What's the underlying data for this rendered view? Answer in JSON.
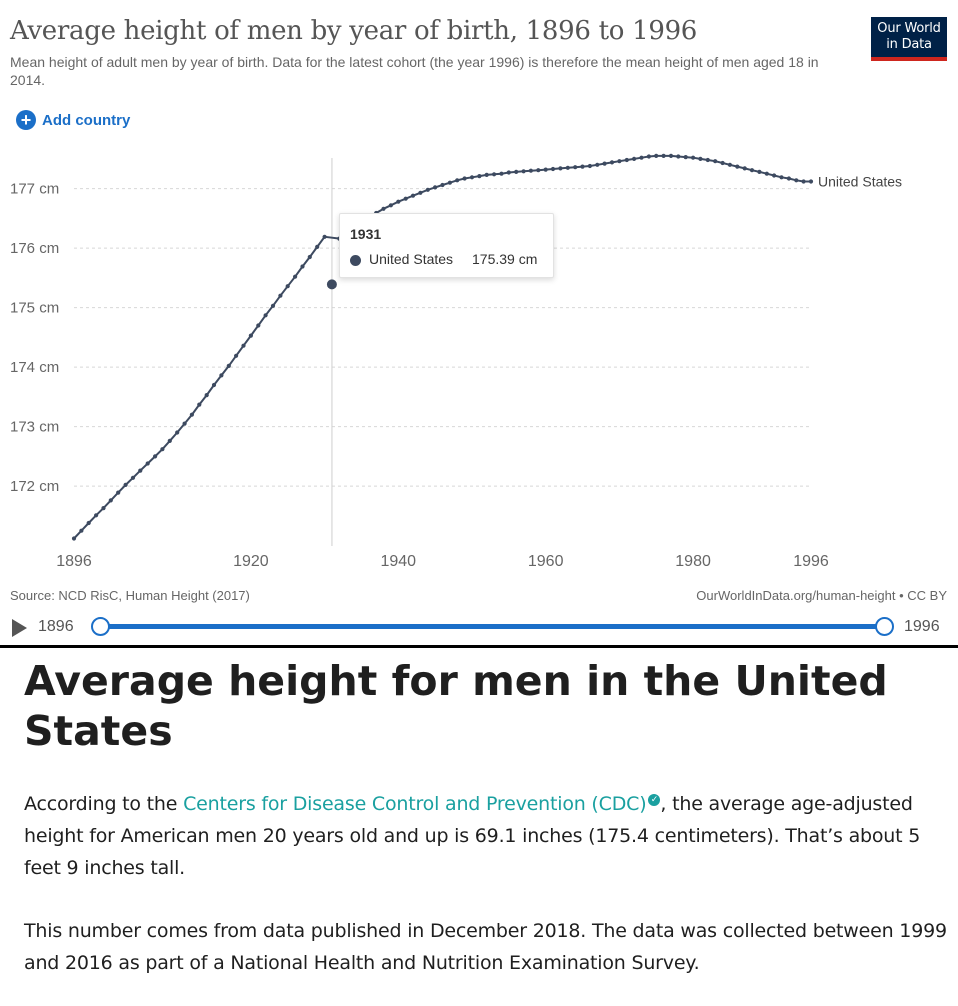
{
  "header": {
    "title": "Average height of men by year of birth, 1896 to 1996",
    "subtitle": "Mean height of adult men by year of birth. Data for the latest cohort (the year 1996) is therefore the mean height of men aged 18 in 2014.",
    "logo_line1": "Our World",
    "logo_line2": "in Data",
    "add_country_label": "Add country"
  },
  "tooltip": {
    "year": "1931",
    "series": "United States",
    "value": "175.39 cm"
  },
  "footer": {
    "source": "Source: NCD RisC, Human Height (2017)",
    "license": "OurWorldInData.org/human-height • CC BY"
  },
  "timeline": {
    "start_label": "1896",
    "end_label": "1996",
    "start_value": 1896,
    "end_value": 1996
  },
  "article": {
    "heading": "Average height for men in the United States",
    "p1_before": "According to the ",
    "p1_link": "Centers for Disease Control and Prevention (CDC)",
    "p1_after": ", the average age-adjusted height for American men 20 years old and up is 69.1 inches (175.4 centimeters). That’s about 5 feet 9 inches tall.",
    "p2": "This number comes from data published in December 2018. The data was collected between 1999 and 2016 as part of a National Health and Nutrition Examination Survey."
  },
  "colors": {
    "series": "#3d4a60",
    "accent": "#1b6fc8",
    "link": "#1aa0a0"
  },
  "chart_data": {
    "type": "line",
    "title": "Average height of men by year of birth, 1896 to 1996",
    "xlabel": "",
    "ylabel": "",
    "xlim": [
      1896,
      1996
    ],
    "ylim": [
      171,
      177.6
    ],
    "x_ticks": [
      1896,
      1920,
      1940,
      1960,
      1980,
      1996
    ],
    "y_ticks": [
      172,
      173,
      174,
      175,
      176,
      177
    ],
    "y_tick_suffix": " cm",
    "grid": "horizontal dashed",
    "highlight_x": 1931,
    "series": [
      {
        "name": "United States",
        "x": [
          1896,
          1897,
          1898,
          1899,
          1900,
          1901,
          1902,
          1903,
          1904,
          1905,
          1906,
          1907,
          1908,
          1909,
          1910,
          1911,
          1912,
          1913,
          1914,
          1915,
          1916,
          1917,
          1918,
          1919,
          1920,
          1921,
          1922,
          1923,
          1924,
          1925,
          1926,
          1927,
          1928,
          1929,
          1930,
          1931,
          1932,
          1933,
          1934,
          1935,
          1936,
          1937,
          1938,
          1939,
          1940,
          1941,
          1942,
          1943,
          1944,
          1945,
          1946,
          1947,
          1948,
          1949,
          1950,
          1951,
          1952,
          1953,
          1954,
          1955,
          1956,
          1957,
          1958,
          1959,
          1960,
          1961,
          1962,
          1963,
          1964,
          1965,
          1966,
          1967,
          1968,
          1969,
          1970,
          1971,
          1972,
          1973,
          1974,
          1975,
          1976,
          1977,
          1978,
          1979,
          1980,
          1981,
          1982,
          1983,
          1984,
          1985,
          1986,
          1987,
          1988,
          1989,
          1990,
          1991,
          1992,
          1993,
          1994,
          1995,
          1996
        ],
        "values": [
          171.12,
          171.25,
          171.38,
          171.51,
          171.63,
          171.76,
          171.89,
          172.02,
          172.14,
          172.26,
          172.38,
          172.5,
          172.62,
          172.76,
          172.9,
          173.05,
          173.2,
          173.37,
          173.53,
          173.7,
          173.86,
          174.02,
          174.19,
          174.36,
          174.53,
          174.7,
          174.87,
          175.03,
          175.2,
          175.36,
          175.52,
          175.69,
          175.85,
          176.02,
          176.19,
          175.39,
          176.16,
          176.28,
          176.36,
          176.44,
          176.52,
          176.59,
          176.66,
          176.72,
          176.78,
          176.83,
          176.88,
          176.93,
          176.98,
          177.02,
          177.06,
          177.1,
          177.14,
          177.17,
          177.19,
          177.21,
          177.23,
          177.24,
          177.25,
          177.27,
          177.28,
          177.29,
          177.3,
          177.31,
          177.32,
          177.33,
          177.34,
          177.35,
          177.36,
          177.37,
          177.38,
          177.4,
          177.42,
          177.44,
          177.46,
          177.48,
          177.5,
          177.52,
          177.54,
          177.55,
          177.55,
          177.55,
          177.54,
          177.53,
          177.52,
          177.5,
          177.48,
          177.46,
          177.43,
          177.4,
          177.37,
          177.34,
          177.31,
          177.28,
          177.25,
          177.22,
          177.19,
          177.17,
          177.14,
          177.12,
          177.12
        ]
      }
    ]
  }
}
